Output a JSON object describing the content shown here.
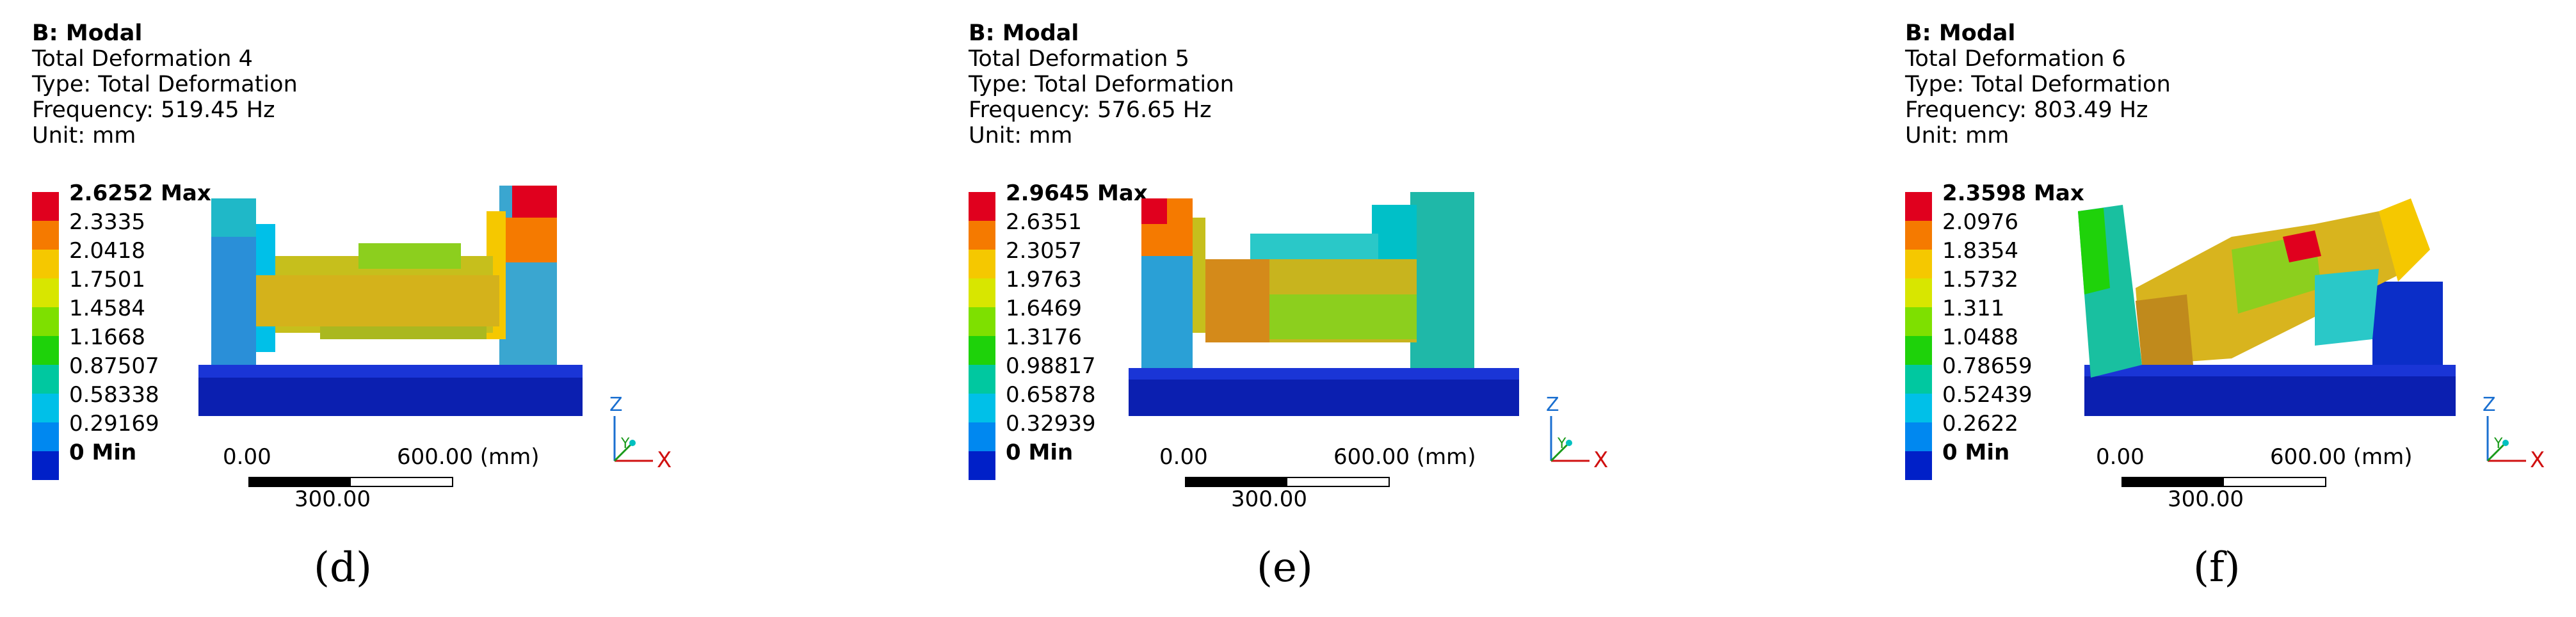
{
  "panels": [
    {
      "title": "B: Modal",
      "line1": "Total Deformation 4",
      "line2": "Type: Total Deformation",
      "line3": "Frequency: 519.45 Hz",
      "line4": "Unit: mm",
      "legend": [
        "2.6252 Max",
        "2.3335",
        "2.0418",
        "1.7501",
        "1.4584",
        "1.1668",
        "0.87507",
        "0.58338",
        "0.29169",
        "0 Min"
      ],
      "scale": {
        "start": "0.00",
        "end": "600.00 (mm)",
        "mid": "300.00"
      },
      "axis": {
        "z": "Z",
        "y": "Y",
        "x": "X"
      },
      "caption": "(d)"
    },
    {
      "title": "B: Modal",
      "line1": "Total Deformation 5",
      "line2": "Type: Total Deformation",
      "line3": "Frequency: 576.65 Hz",
      "line4": "Unit: mm",
      "legend": [
        "2.9645 Max",
        "2.6351",
        "2.3057",
        "1.9763",
        "1.6469",
        "1.3176",
        "0.98817",
        "0.65878",
        "0.32939",
        "0 Min"
      ],
      "scale": {
        "start": "0.00",
        "end": "600.00 (mm)",
        "mid": "300.00"
      },
      "axis": {
        "z": "Z",
        "y": "Y",
        "x": "X"
      },
      "caption": "(e)"
    },
    {
      "title": "B: Modal",
      "line1": "Total Deformation 6",
      "line2": "Type: Total Deformation",
      "line3": "Frequency: 803.49 Hz",
      "line4": "Unit: mm",
      "legend": [
        "2.3598 Max",
        "2.0976",
        "1.8354",
        "1.5732",
        "1.311",
        "1.0488",
        "0.78659",
        "0.52439",
        "0.2622",
        "0 Min"
      ],
      "scale": {
        "start": "0.00",
        "end": "600.00 (mm)",
        "mid": "300.00"
      },
      "axis": {
        "z": "Z",
        "y": "Y",
        "x": "X"
      },
      "caption": "(f)"
    }
  ],
  "legend_colors": [
    "#e0001e",
    "#f57a00",
    "#f5c800",
    "#d8e600",
    "#7ee000",
    "#1ed20a",
    "#00c8a0",
    "#00c0e8",
    "#0088f0",
    "#0020c8"
  ]
}
